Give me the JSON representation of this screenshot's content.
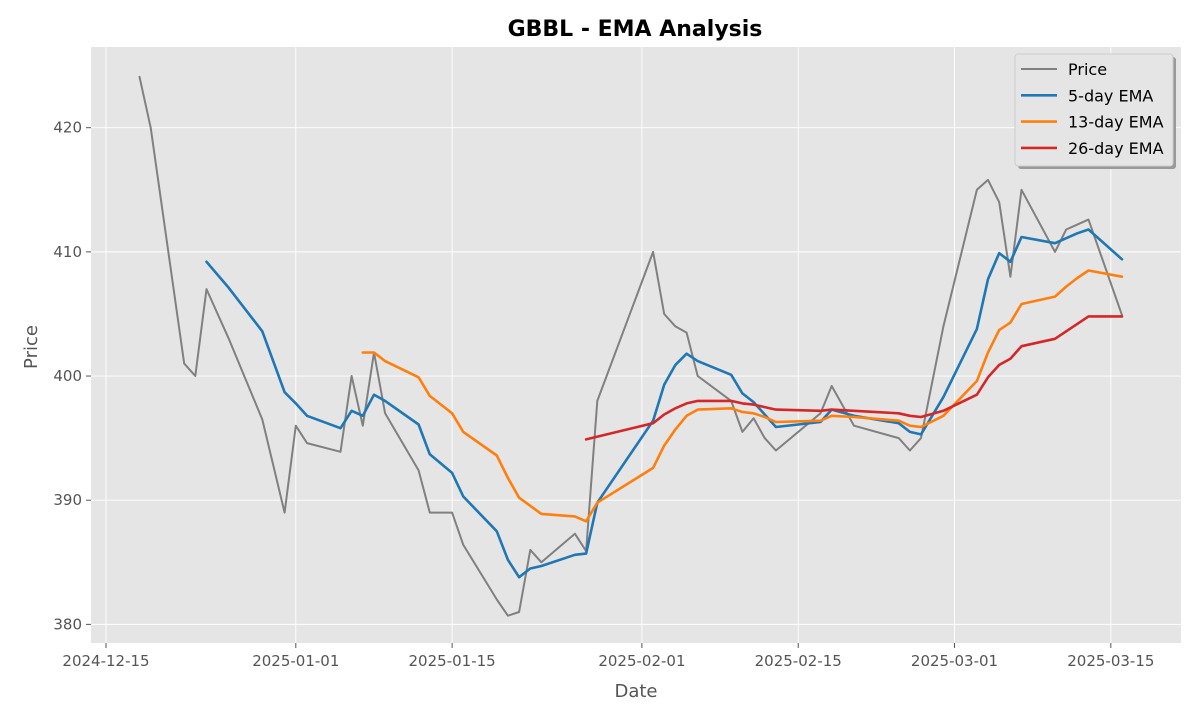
{
  "chart_data": {
    "type": "line",
    "title": "GBBL - EMA Analysis",
    "xlabel": "Date",
    "ylabel": "Price",
    "x_ticks": [
      "2024-12-15",
      "2025-01-01",
      "2025-01-15",
      "2025-02-01",
      "2025-02-15",
      "2025-03-01",
      "2025-03-15"
    ],
    "y_ticks": [
      380,
      390,
      400,
      410,
      420
    ],
    "ylim": [
      378.5,
      426.5
    ],
    "xlim": [
      "2024-12-15",
      "2025-03-16"
    ],
    "grid": true,
    "legend_position": "top-right",
    "series": [
      {
        "name": "Price",
        "color": "#808080",
        "points": [
          [
            "2024-12-18",
            424.1
          ],
          [
            "2024-12-19",
            420.0
          ],
          [
            "2024-12-22",
            401.0
          ],
          [
            "2024-12-23",
            400.0
          ],
          [
            "2024-12-24",
            407.0
          ],
          [
            "2024-12-26",
            403.0
          ],
          [
            "2024-12-29",
            396.5
          ],
          [
            "2024-12-31",
            389.0
          ],
          [
            "2025-01-01",
            396.0
          ],
          [
            "2025-01-02",
            394.6
          ],
          [
            "2025-01-05",
            393.9
          ],
          [
            "2025-01-06",
            400.0
          ],
          [
            "2025-01-07",
            396.0
          ],
          [
            "2025-01-08",
            401.9
          ],
          [
            "2025-01-09",
            397.0
          ],
          [
            "2025-01-12",
            392.4
          ],
          [
            "2025-01-13",
            389.0
          ],
          [
            "2025-01-15",
            389.0
          ],
          [
            "2025-01-16",
            386.4
          ],
          [
            "2025-01-19",
            382.0
          ],
          [
            "2025-01-20",
            380.7
          ],
          [
            "2025-01-21",
            381.0
          ],
          [
            "2025-01-22",
            386.0
          ],
          [
            "2025-01-23",
            385.0
          ],
          [
            "2025-01-26",
            387.3
          ],
          [
            "2025-01-27",
            385.9
          ],
          [
            "2025-01-28",
            398.0
          ],
          [
            "2025-02-02",
            410.0
          ],
          [
            "2025-02-03",
            405.0
          ],
          [
            "2025-02-04",
            404.0
          ],
          [
            "2025-02-05",
            403.5
          ],
          [
            "2025-02-06",
            400.0
          ],
          [
            "2025-02-09",
            398.0
          ],
          [
            "2025-02-10",
            395.5
          ],
          [
            "2025-02-11",
            396.6
          ],
          [
            "2025-02-12",
            395.0
          ],
          [
            "2025-02-13",
            394.0
          ],
          [
            "2025-02-17",
            397.0
          ],
          [
            "2025-02-18",
            399.2
          ],
          [
            "2025-02-20",
            396.0
          ],
          [
            "2025-02-24",
            395.0
          ],
          [
            "2025-02-25",
            394.0
          ],
          [
            "2025-02-26",
            395.0
          ],
          [
            "2025-02-28",
            404.0
          ],
          [
            "2025-03-03",
            415.0
          ],
          [
            "2025-03-04",
            415.8
          ],
          [
            "2025-03-05",
            414.0
          ],
          [
            "2025-03-06",
            408.0
          ],
          [
            "2025-03-07",
            415.0
          ],
          [
            "2025-03-10",
            410.0
          ],
          [
            "2025-03-11",
            411.8
          ],
          [
            "2025-03-12",
            412.2
          ],
          [
            "2025-03-13",
            412.6
          ],
          [
            "2025-03-16",
            404.9
          ]
        ]
      },
      {
        "name": "5-day EMA",
        "color": "#1f77b4",
        "points": [
          [
            "2024-12-24",
            409.2
          ],
          [
            "2024-12-26",
            407.1
          ],
          [
            "2024-12-29",
            403.6
          ],
          [
            "2024-12-31",
            398.7
          ],
          [
            "2025-01-01",
            397.8
          ],
          [
            "2025-01-02",
            396.8
          ],
          [
            "2025-01-05",
            395.8
          ],
          [
            "2025-01-06",
            397.2
          ],
          [
            "2025-01-07",
            396.8
          ],
          [
            "2025-01-08",
            398.5
          ],
          [
            "2025-01-09",
            398.0
          ],
          [
            "2025-01-12",
            396.1
          ],
          [
            "2025-01-13",
            393.7
          ],
          [
            "2025-01-15",
            392.2
          ],
          [
            "2025-01-16",
            390.3
          ],
          [
            "2025-01-19",
            387.5
          ],
          [
            "2025-01-20",
            385.2
          ],
          [
            "2025-01-21",
            383.8
          ],
          [
            "2025-01-22",
            384.5
          ],
          [
            "2025-01-23",
            384.7
          ],
          [
            "2025-01-26",
            385.6
          ],
          [
            "2025-01-27",
            385.7
          ],
          [
            "2025-01-28",
            389.8
          ],
          [
            "2025-02-02",
            396.4
          ],
          [
            "2025-02-03",
            399.3
          ],
          [
            "2025-02-04",
            400.9
          ],
          [
            "2025-02-05",
            401.8
          ],
          [
            "2025-02-06",
            401.2
          ],
          [
            "2025-02-09",
            400.1
          ],
          [
            "2025-02-10",
            398.6
          ],
          [
            "2025-02-11",
            397.9
          ],
          [
            "2025-02-12",
            396.9
          ],
          [
            "2025-02-13",
            395.9
          ],
          [
            "2025-02-17",
            396.3
          ],
          [
            "2025-02-18",
            397.3
          ],
          [
            "2025-02-20",
            396.8
          ],
          [
            "2025-02-24",
            396.2
          ],
          [
            "2025-02-25",
            395.5
          ],
          [
            "2025-02-26",
            395.3
          ],
          [
            "2025-02-28",
            398.3
          ],
          [
            "2025-03-03",
            403.8
          ],
          [
            "2025-03-04",
            407.8
          ],
          [
            "2025-03-05",
            409.9
          ],
          [
            "2025-03-06",
            409.2
          ],
          [
            "2025-03-07",
            411.2
          ],
          [
            "2025-03-10",
            410.7
          ],
          [
            "2025-03-11",
            411.1
          ],
          [
            "2025-03-12",
            411.5
          ],
          [
            "2025-03-13",
            411.8
          ],
          [
            "2025-03-16",
            409.4
          ]
        ]
      },
      {
        "name": "13-day EMA",
        "color": "#ff7f0e",
        "points": [
          [
            "2025-01-07",
            401.9
          ],
          [
            "2025-01-08",
            401.9
          ],
          [
            "2025-01-09",
            401.2
          ],
          [
            "2025-01-12",
            399.9
          ],
          [
            "2025-01-13",
            398.4
          ],
          [
            "2025-01-15",
            397.0
          ],
          [
            "2025-01-16",
            395.5
          ],
          [
            "2025-01-19",
            393.6
          ],
          [
            "2025-01-20",
            391.8
          ],
          [
            "2025-01-21",
            390.2
          ],
          [
            "2025-01-23",
            388.9
          ],
          [
            "2025-01-26",
            388.7
          ],
          [
            "2025-01-27",
            388.3
          ],
          [
            "2025-01-28",
            389.8
          ],
          [
            "2025-02-02",
            392.6
          ],
          [
            "2025-02-03",
            394.4
          ],
          [
            "2025-02-04",
            395.7
          ],
          [
            "2025-02-05",
            396.8
          ],
          [
            "2025-02-06",
            397.3
          ],
          [
            "2025-02-09",
            397.4
          ],
          [
            "2025-02-10",
            397.1
          ],
          [
            "2025-02-11",
            397.0
          ],
          [
            "2025-02-12",
            396.7
          ],
          [
            "2025-02-13",
            396.3
          ],
          [
            "2025-02-17",
            396.4
          ],
          [
            "2025-02-18",
            396.8
          ],
          [
            "2025-02-20",
            396.7
          ],
          [
            "2025-02-24",
            396.4
          ],
          [
            "2025-02-25",
            396.0
          ],
          [
            "2025-02-26",
            395.9
          ],
          [
            "2025-02-28",
            396.8
          ],
          [
            "2025-03-03",
            399.6
          ],
          [
            "2025-03-04",
            401.9
          ],
          [
            "2025-03-05",
            403.7
          ],
          [
            "2025-03-06",
            404.3
          ],
          [
            "2025-03-07",
            405.8
          ],
          [
            "2025-03-10",
            406.4
          ],
          [
            "2025-03-11",
            407.2
          ],
          [
            "2025-03-12",
            407.9
          ],
          [
            "2025-03-13",
            408.5
          ],
          [
            "2025-03-16",
            408.0
          ]
        ]
      },
      {
        "name": "26-day EMA",
        "color": "#d62728",
        "points": [
          [
            "2025-01-27",
            394.9
          ],
          [
            "2025-02-02",
            396.2
          ],
          [
            "2025-02-03",
            396.9
          ],
          [
            "2025-02-04",
            397.4
          ],
          [
            "2025-02-05",
            397.8
          ],
          [
            "2025-02-06",
            398.0
          ],
          [
            "2025-02-09",
            398.0
          ],
          [
            "2025-02-10",
            397.8
          ],
          [
            "2025-02-11",
            397.7
          ],
          [
            "2025-02-12",
            397.5
          ],
          [
            "2025-02-13",
            397.3
          ],
          [
            "2025-02-17",
            397.2
          ],
          [
            "2025-02-18",
            397.3
          ],
          [
            "2025-02-20",
            397.2
          ],
          [
            "2025-02-24",
            397.0
          ],
          [
            "2025-02-25",
            396.8
          ],
          [
            "2025-02-26",
            396.7
          ],
          [
            "2025-02-28",
            397.2
          ],
          [
            "2025-03-03",
            398.5
          ],
          [
            "2025-03-04",
            399.9
          ],
          [
            "2025-03-05",
            400.9
          ],
          [
            "2025-03-06",
            401.4
          ],
          [
            "2025-03-07",
            402.4
          ],
          [
            "2025-03-10",
            403.0
          ],
          [
            "2025-03-11",
            403.6
          ],
          [
            "2025-03-12",
            404.2
          ],
          [
            "2025-03-13",
            404.8
          ],
          [
            "2025-03-16",
            404.8
          ]
        ]
      }
    ]
  }
}
